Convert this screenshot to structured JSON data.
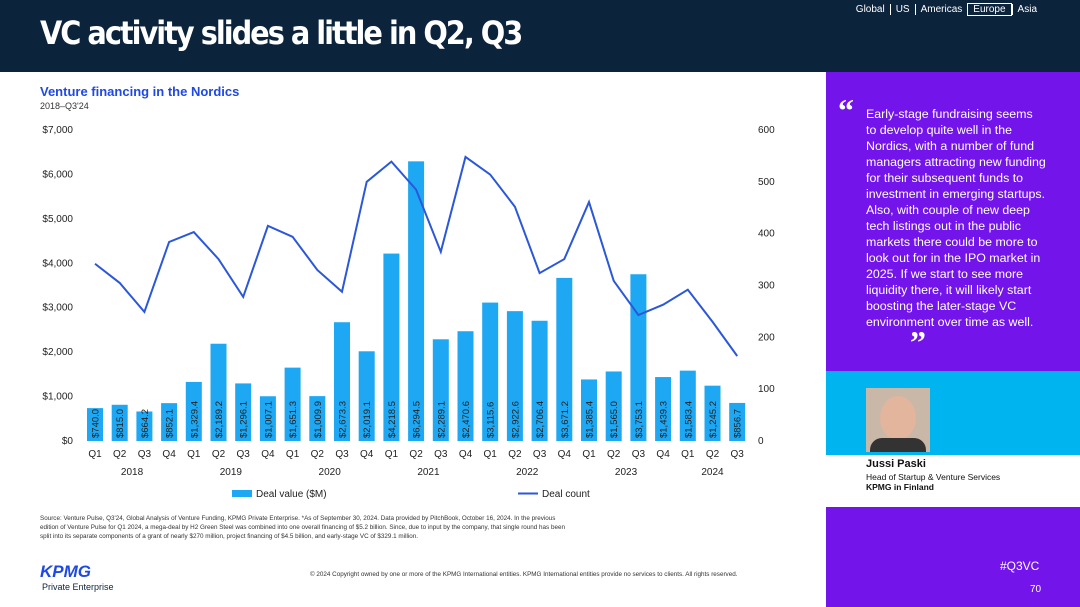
{
  "header": {
    "title": "VC activity slides a little in Q2, Q3",
    "nav": [
      "Global",
      "US",
      "Americas",
      "Europe",
      "Asia"
    ],
    "nav_active": "Europe"
  },
  "chart_data": {
    "type": "bar_line",
    "title": "Venture financing in the Nordics",
    "subtitle": "2018–Q3'24",
    "categories": [
      "Q1",
      "Q2",
      "Q3",
      "Q4",
      "Q1",
      "Q2",
      "Q3",
      "Q4",
      "Q1",
      "Q2",
      "Q3",
      "Q4",
      "Q1",
      "Q2",
      "Q3",
      "Q4",
      "Q1",
      "Q2",
      "Q3",
      "Q4",
      "Q1",
      "Q2",
      "Q3",
      "Q4",
      "Q1",
      "Q2",
      "Q3"
    ],
    "years": [
      "2018",
      "2019",
      "2020",
      "2021",
      "2022",
      "2023",
      "2024"
    ],
    "series": [
      {
        "name": "Deal value ($M)",
        "color": "#1ea7f2",
        "type": "bar",
        "values": [
          740.0,
          815.0,
          664.2,
          852.1,
          1329.4,
          2189.2,
          1296.1,
          1007.1,
          1651.3,
          1009.9,
          2673.3,
          2019.1,
          4218.5,
          6294.5,
          2289.1,
          2470.6,
          3115.6,
          2922.6,
          2706.4,
          3671.2,
          1385.4,
          1565.0,
          3753.1,
          1439.3,
          1583.4,
          1245.2,
          856.7
        ],
        "value_labels": [
          "$740.0",
          "$815.0",
          "$664.2",
          "$852.1",
          "$1,329.4",
          "$2,189.2",
          "$1,296.1",
          "$1,007.1",
          "$1,651.3",
          "$1,009.9",
          "$2,673.3",
          "$2,019.1",
          "$4,218.5",
          "$6,294.5",
          "$2,289.1",
          "$2,470.6",
          "$3,115.6",
          "$2,922.6",
          "$2,706.4",
          "$3,671.2",
          "$1,385.4",
          "$1,565.0",
          "$3,753.1",
          "$1,439.3",
          "$1,583.4",
          "$1,245.2",
          "$856.7"
        ]
      },
      {
        "name": "Deal count",
        "color": "#2b57d9",
        "type": "line",
        "axis": "y2",
        "values": [
          342,
          305,
          249,
          384,
          403,
          351,
          278,
          415,
          394,
          330,
          288,
          500,
          539,
          485,
          365,
          548,
          514,
          452,
          324,
          351,
          461,
          309,
          243,
          263,
          292,
          230,
          164
        ]
      }
    ],
    "ylim": [
      0,
      7000
    ],
    "yticks": [
      {
        "value": 0,
        "label": "$0"
      },
      {
        "value": 1000,
        "label": "$1,000"
      },
      {
        "value": 2000,
        "label": "$2,000"
      },
      {
        "value": 3000,
        "label": "$3,000"
      },
      {
        "value": 4000,
        "label": "$4,000"
      },
      {
        "value": 5000,
        "label": "$5,000"
      },
      {
        "value": 6000,
        "label": "$6,000"
      },
      {
        "value": 7000,
        "label": "$7,000"
      }
    ],
    "y2lim": [
      0,
      600
    ],
    "y2ticks": [
      0,
      100,
      200,
      300,
      400,
      500,
      600
    ],
    "grid": false,
    "legend": "bottom"
  },
  "footnote": "Source: Venture Pulse, Q3'24, Global Analysis of Venture Funding, KPMG Private Enterprise. *As of September 30, 2024. Data provided by PitchBook, October 16, 2024. In the previous edition of Venture Pulse for Q1 2024, a mega-deal by H2 Green Steel was combined into one overall financing of $5.2 billion. Since, due to input by the company, that single round has been split into its separate components of a grant of nearly $270 million, project financing of $4.5 billion, and early-stage VC of $329.1 million.",
  "copyright": "© 2024 Copyright owned by one or more of the KPMG International entities. KPMG International entities provide no services to clients. All rights reserved.",
  "logo": {
    "name": "KPMG",
    "sub": "Private Enterprise"
  },
  "quote": {
    "open": "“",
    "text": "Early-stage fundraising seems to develop quite well in the Nordics, with a number of fund managers attracting new funding for their subsequent funds to investment in emerging startups. Also, with couple of new deep tech listings out in the public markets there could be more to look out for in the IPO market in 2025. If we start to see more liquidity there, it will likely start boosting the later-stage VC environment over time as well.",
    "close": "”"
  },
  "person": {
    "name": "Jussi Paski",
    "role": "Head of Startup & Venture Services",
    "org": "KPMG in Finland"
  },
  "hashtag": "#Q3VC",
  "page": "70"
}
